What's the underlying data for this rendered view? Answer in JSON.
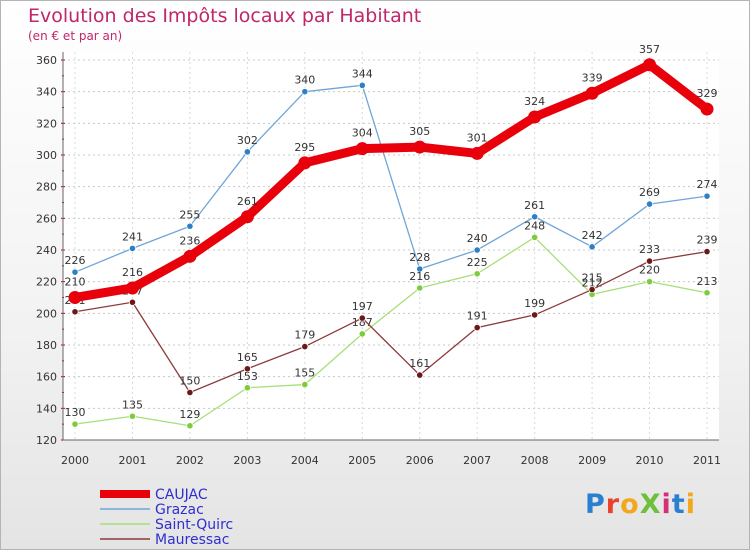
{
  "title": "Evolution des Impôts locaux par Habitant",
  "subtitle": "(en € et par an)",
  "logo": {
    "text": "ProXiti",
    "letters": [
      "P",
      "r",
      "o",
      "X",
      "i",
      "t",
      "i"
    ],
    "colors": [
      "#2a7fd0",
      "#e8432a",
      "#f2a81d",
      "#6fbf3a",
      "#d62f7a",
      "#2a7fd0",
      "#f2a81d"
    ]
  },
  "chart_data": {
    "type": "line",
    "title": "Evolution des Impôts locaux par Habitant",
    "subtitle": "(en € et par an)",
    "xlabel": "",
    "ylabel": "",
    "x": [
      "2000",
      "2001",
      "2002",
      "2003",
      "2004",
      "2005",
      "2006",
      "2007",
      "2008",
      "2009",
      "2010",
      "2011"
    ],
    "ylim": [
      120,
      360
    ],
    "yticks": [
      120,
      140,
      160,
      180,
      200,
      220,
      240,
      260,
      280,
      300,
      320,
      340,
      360
    ],
    "series": [
      {
        "name": "CAUJAC",
        "color": "#e8000b",
        "bold": true,
        "values": [
          210,
          216,
          236,
          261,
          295,
          304,
          305,
          301,
          324,
          339,
          357,
          329
        ]
      },
      {
        "name": "Grazac",
        "color": "#6fa6d8",
        "marker": "#2f7fc8",
        "values": [
          226,
          241,
          255,
          302,
          340,
          344,
          228,
          240,
          261,
          242,
          269,
          274
        ]
      },
      {
        "name": "Saint-Quirc",
        "color": "#a6df78",
        "marker": "#7ccc3c",
        "values": [
          130,
          135,
          129,
          153,
          155,
          187,
          216,
          225,
          248,
          212,
          220,
          213
        ]
      },
      {
        "name": "Mauressac",
        "color": "#8b3a3a",
        "marker": "#6a1818",
        "values": [
          201,
          207,
          150,
          165,
          179,
          197,
          161,
          191,
          199,
          215,
          233,
          239
        ]
      }
    ],
    "legend": "bottom-left"
  }
}
